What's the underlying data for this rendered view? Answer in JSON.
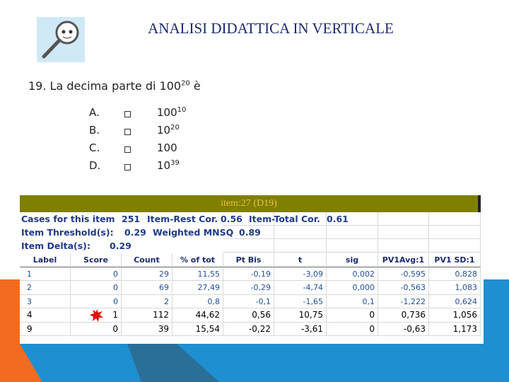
{
  "header": {
    "title": "ANALISI DIDATTICA IN VERTICALE"
  },
  "question": {
    "number": "19.",
    "text": "La decima parte di",
    "base": "100",
    "exponent": "20",
    "end": "è"
  },
  "options": [
    {
      "letter": "A.",
      "base": "100",
      "exponent": "10"
    },
    {
      "letter": "B.",
      "base": "10",
      "exponent": "20"
    },
    {
      "letter": "C.",
      "base": "100"
    },
    {
      "letter": "D.",
      "base": "10",
      "exponent": "39"
    }
  ],
  "table": {
    "title": "item:27 (D19)",
    "info": [
      [
        "Cases for this item",
        "251",
        "Item-Rest Cor.",
        "0.56",
        "Item-Total Cor.",
        "0.61"
      ],
      [
        "Item Threshold(s):",
        "0.29",
        "Weighted MNSQ",
        "0.89"
      ],
      [
        "Item Delta(s):",
        "0.29"
      ]
    ],
    "columns": [
      "Label",
      "Score",
      "Count",
      "% of tot",
      "Pt Bis",
      "t",
      "sig",
      "PV1Avg:1",
      "PV1 SD:1"
    ],
    "rows": [
      [
        "1",
        "0",
        "29",
        "11,55",
        "-0,19",
        "-3,09",
        "0,002",
        "-0,595",
        "0,828"
      ],
      [
        "2",
        "0",
        "69",
        "27,49",
        "-0,29",
        "-4,74",
        "0,000",
        "-0,563",
        "1,083"
      ],
      [
        "3",
        "0",
        "2",
        "0,8",
        "-0,1",
        "-1,65",
        "0,1",
        "-1,222",
        "0,624"
      ],
      [
        "4",
        "1",
        "112",
        "44,62",
        "0,56",
        "10,75",
        "0",
        "0,736",
        "1,056"
      ],
      [
        "9",
        "0",
        "39",
        "15,54",
        "-0,22",
        "-3,61",
        "0",
        "-0,63",
        "1,173"
      ]
    ]
  }
}
